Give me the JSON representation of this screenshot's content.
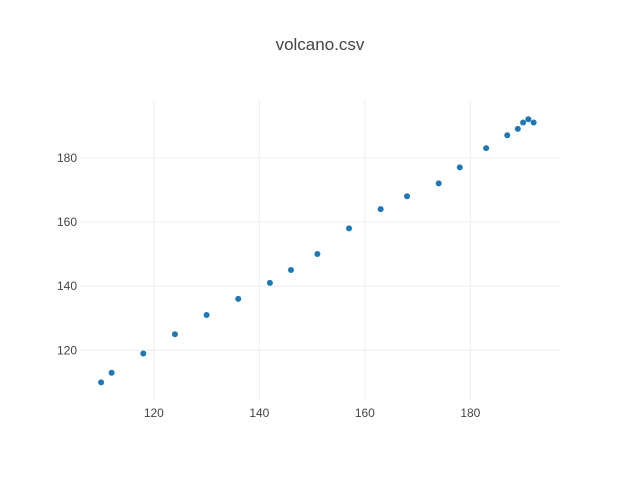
{
  "chart_data": {
    "type": "scatter",
    "title": "volcano.csv",
    "xlabel": "",
    "ylabel": "",
    "xlim": [
      106,
      197
    ],
    "ylim": [
      104.5,
      198
    ],
    "x_ticks": [
      120,
      140,
      160,
      180
    ],
    "y_ticks": [
      120,
      140,
      160,
      180
    ],
    "grid": true,
    "legend": "none",
    "marker_color": "#1f77b4",
    "points": [
      {
        "x": 110,
        "y": 110
      },
      {
        "x": 112,
        "y": 113
      },
      {
        "x": 118,
        "y": 119
      },
      {
        "x": 124,
        "y": 125
      },
      {
        "x": 130,
        "y": 131
      },
      {
        "x": 136,
        "y": 136
      },
      {
        "x": 142,
        "y": 141
      },
      {
        "x": 146,
        "y": 145
      },
      {
        "x": 151,
        "y": 150
      },
      {
        "x": 157,
        "y": 158
      },
      {
        "x": 163,
        "y": 164
      },
      {
        "x": 168,
        "y": 168
      },
      {
        "x": 174,
        "y": 172
      },
      {
        "x": 178,
        "y": 177
      },
      {
        "x": 183,
        "y": 183
      },
      {
        "x": 187,
        "y": 187
      },
      {
        "x": 189,
        "y": 189
      },
      {
        "x": 190,
        "y": 191
      },
      {
        "x": 191,
        "y": 192
      },
      {
        "x": 192,
        "y": 191
      }
    ]
  }
}
